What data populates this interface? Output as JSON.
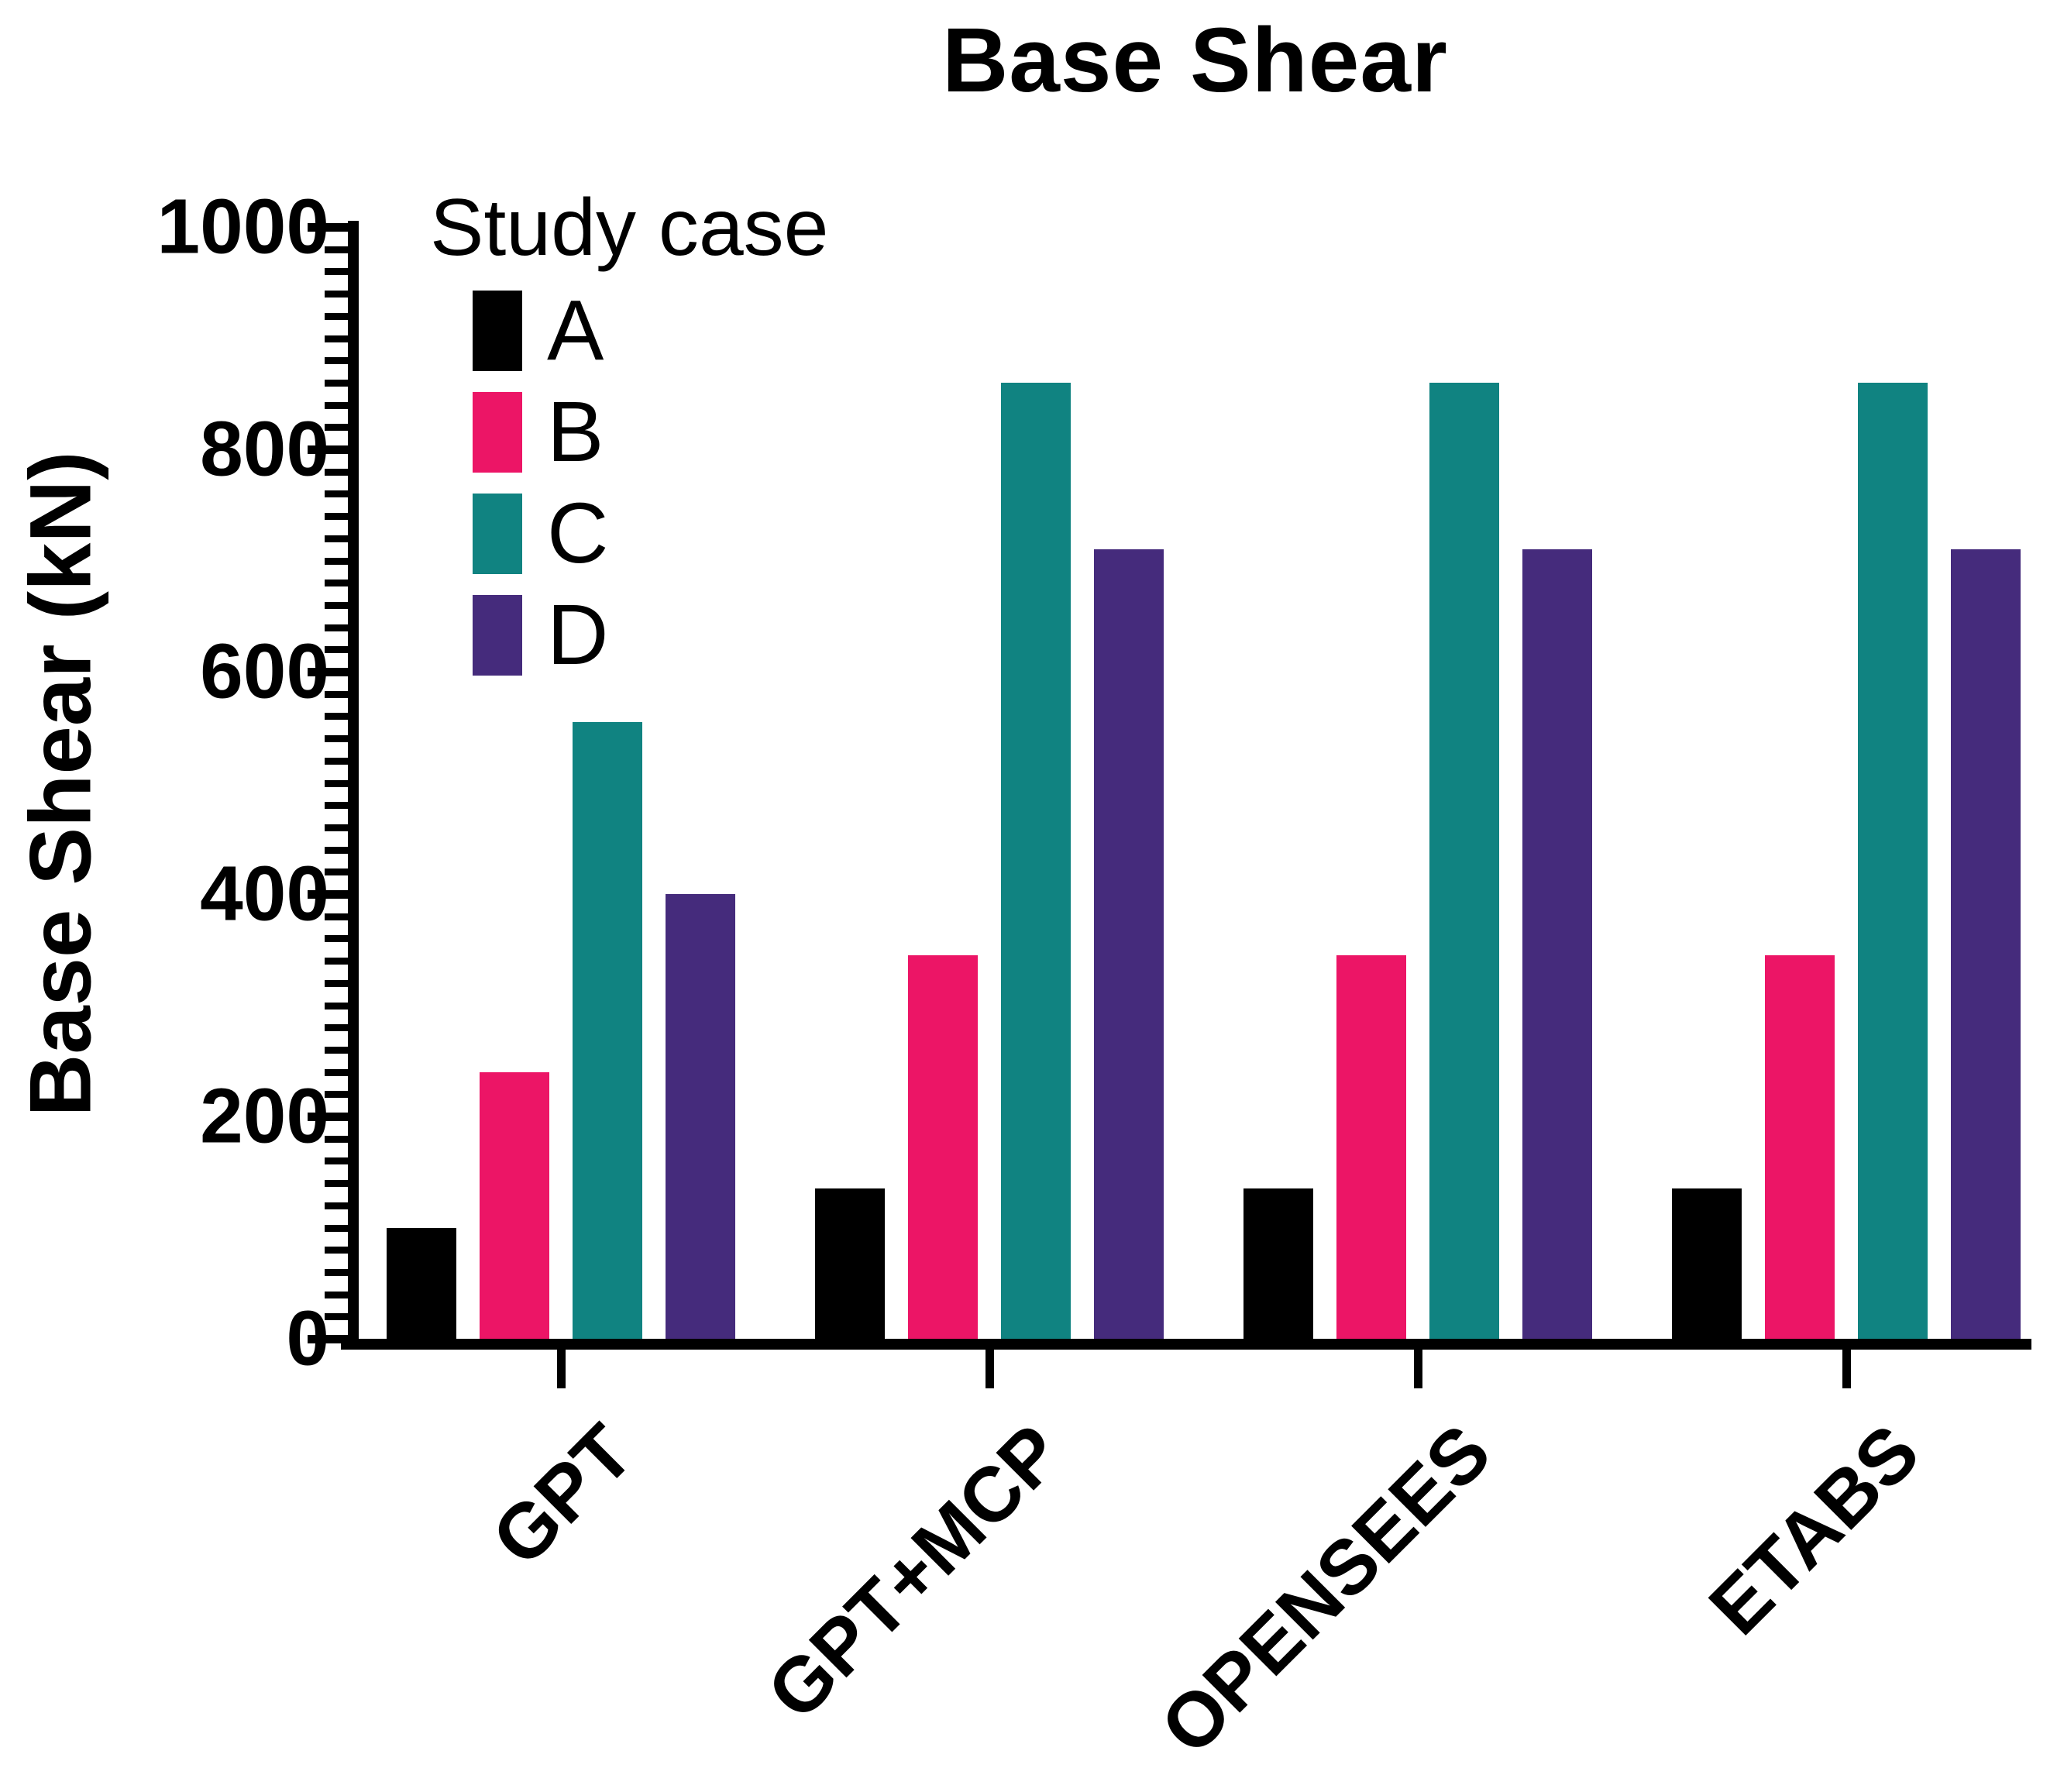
{
  "chart_data": {
    "type": "bar",
    "title": "Base Shear",
    "ylabel": "Base Shear (kN)",
    "xlabel": "",
    "legend_title": "Study case",
    "legend_position": "top-left-inside",
    "grid": false,
    "categories": [
      "GPT",
      "GPT+MCP",
      "OPENSEES",
      "ETABS"
    ],
    "series": [
      {
        "name": "A",
        "color": "#000000",
        "values": [
          100,
          135,
          135,
          135
        ]
      },
      {
        "name": "B",
        "color": "#EC1566",
        "values": [
          240,
          345,
          345,
          345
        ]
      },
      {
        "name": "C",
        "color": "#108381",
        "values": [
          555,
          860,
          860,
          860
        ]
      },
      {
        "name": "D",
        "color": "#452B7C",
        "values": [
          400,
          710,
          710,
          710
        ]
      }
    ],
    "ylim": [
      0,
      1000
    ],
    "y_major_tick": 200,
    "y_minor_tick": 20,
    "y_tick_labels": [
      "0",
      "200",
      "400",
      "600",
      "800",
      "1000"
    ],
    "axis_color": "#000000",
    "text_color": "#000000"
  }
}
